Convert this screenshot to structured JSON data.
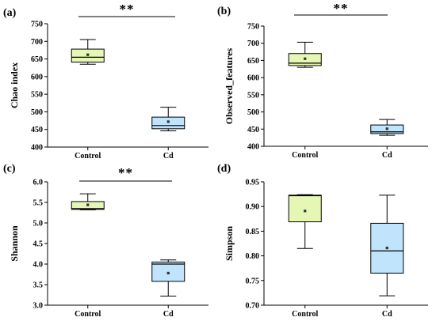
{
  "chart_data": [
    {
      "type": "box",
      "panel_label": "(a)",
      "ylabel": "Chao index",
      "categories": [
        "Control",
        "Cd"
      ],
      "ylim": [
        400,
        750
      ],
      "yticks": [
        400,
        450,
        500,
        550,
        600,
        650,
        700,
        750
      ],
      "boxes": [
        {
          "category": "Control",
          "min": 635,
          "q1": 641,
          "median": 655,
          "q3": 678,
          "max": 705,
          "mean": 662,
          "color": "#e6f7b5"
        },
        {
          "category": "Cd",
          "min": 446,
          "q1": 452,
          "median": 461,
          "q3": 485,
          "max": 513,
          "mean": 472,
          "color": "#bfe4fb"
        }
      ],
      "significance": "**"
    },
    {
      "type": "box",
      "panel_label": "(b)",
      "ylabel": "Observed_features",
      "categories": [
        "Control",
        "Cd"
      ],
      "ylim": [
        400,
        750
      ],
      "yticks": [
        400,
        450,
        500,
        550,
        600,
        650,
        700,
        750
      ],
      "boxes": [
        {
          "category": "Control",
          "min": 630,
          "q1": 635,
          "median": 642,
          "q3": 670,
          "max": 703,
          "mean": 655,
          "color": "#e6f7b5"
        },
        {
          "category": "Cd",
          "min": 432,
          "q1": 437,
          "median": 442,
          "q3": 462,
          "max": 478,
          "mean": 451,
          "color": "#bfe4fb"
        }
      ],
      "significance": "**"
    },
    {
      "type": "box",
      "panel_label": "(c)",
      "ylabel": "Shannon",
      "categories": [
        "Control",
        "Cd"
      ],
      "ylim": [
        3.0,
        6.0
      ],
      "yticks": [
        3.0,
        3.5,
        4.0,
        4.5,
        5.0,
        5.5,
        6.0
      ],
      "boxes": [
        {
          "category": "Control",
          "min": 5.32,
          "q1": 5.33,
          "median": 5.35,
          "q3": 5.52,
          "max": 5.71,
          "mean": 5.44,
          "color": "#e6f7b5"
        },
        {
          "category": "Cd",
          "min": 3.22,
          "q1": 3.58,
          "median": 4.0,
          "q3": 4.05,
          "max": 4.1,
          "mean": 3.78,
          "color": "#bfe4fb"
        }
      ],
      "significance": "**"
    },
    {
      "type": "box",
      "panel_label": "(d)",
      "ylabel": "Simpson",
      "categories": [
        "Control",
        "Cd"
      ],
      "ylim": [
        0.7,
        0.95
      ],
      "yticks": [
        0.7,
        0.75,
        0.8,
        0.85,
        0.9,
        0.95
      ],
      "boxes": [
        {
          "category": "Control",
          "min": 0.815,
          "q1": 0.869,
          "median": 0.922,
          "q3": 0.923,
          "max": 0.924,
          "mean": 0.891,
          "color": "#e6f7b5"
        },
        {
          "category": "Cd",
          "min": 0.719,
          "q1": 0.765,
          "median": 0.81,
          "q3": 0.866,
          "max": 0.923,
          "mean": 0.816,
          "color": "#bfe4fb"
        }
      ],
      "significance": ""
    }
  ]
}
